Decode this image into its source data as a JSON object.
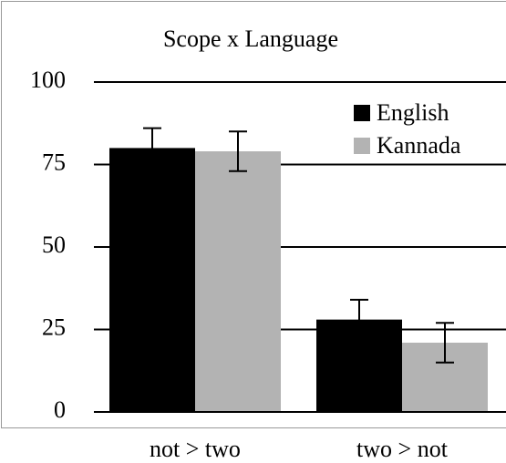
{
  "chart_data": {
    "type": "bar",
    "title": "Scope x Language",
    "categories": [
      "not > two",
      "two > not"
    ],
    "series": [
      {
        "name": "English",
        "color": "#000000",
        "values": [
          80,
          28
        ],
        "errors": [
          6,
          6
        ]
      },
      {
        "name": "Kannada",
        "color": "#b3b3b3",
        "values": [
          79,
          21
        ],
        "errors": [
          6,
          6
        ]
      }
    ],
    "ylim": [
      0,
      100
    ],
    "yticks": [
      0,
      25,
      50,
      75,
      100
    ],
    "grid": true,
    "legend": "upper right"
  }
}
